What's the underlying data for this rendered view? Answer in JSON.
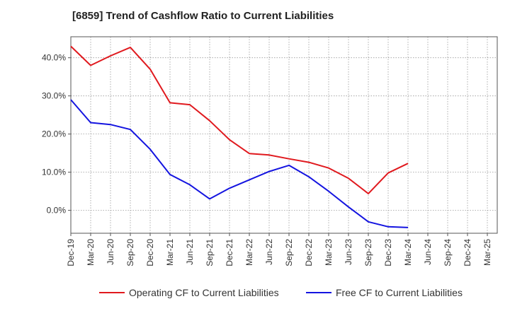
{
  "chart_data": {
    "type": "line",
    "title": "[6859]  Trend of Cashflow Ratio to Current Liabilities",
    "xlabel": "",
    "ylabel": "",
    "x": [
      "Dec-19",
      "Mar-20",
      "Jun-20",
      "Sep-20",
      "Dec-20",
      "Mar-21",
      "Jun-21",
      "Sep-21",
      "Dec-21",
      "Mar-22",
      "Jun-22",
      "Sep-22",
      "Dec-22",
      "Mar-23",
      "Jun-23",
      "Sep-23",
      "Dec-23",
      "Mar-24",
      "Jun-24",
      "Sep-24",
      "Dec-24",
      "Mar-25"
    ],
    "yticks": [
      0,
      10,
      20,
      30,
      40
    ],
    "ytick_labels": [
      "0.0%",
      "10.0%",
      "20.0%",
      "30.0%",
      "40.0%"
    ],
    "ylim": [
      -6,
      45.5
    ],
    "grid": true,
    "legend_position": "bottom",
    "series": [
      {
        "name": "Operating CF to Current Liabilities",
        "color": "#e0191e",
        "values": [
          43.0,
          38.0,
          40.5,
          42.7,
          37.0,
          28.2,
          27.7,
          23.5,
          18.5,
          14.9,
          14.5,
          13.5,
          12.6,
          11.1,
          8.4,
          4.4,
          9.8,
          12.3,
          null,
          null,
          null,
          null
        ]
      },
      {
        "name": "Free CF to Current Liabilities",
        "color": "#1414e0",
        "values": [
          29.0,
          23.0,
          22.5,
          21.2,
          16.0,
          9.4,
          6.7,
          3.0,
          5.8,
          8.0,
          10.2,
          11.8,
          8.8,
          5.0,
          0.9,
          -3.0,
          -4.3,
          -4.5,
          null,
          null,
          null,
          null
        ]
      }
    ]
  }
}
